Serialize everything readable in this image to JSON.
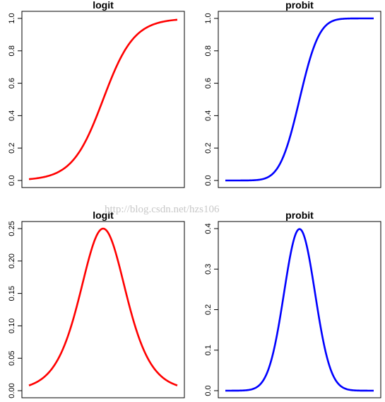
{
  "watermark": "http://blog.csdn.net/hzs106",
  "chart_data": [
    {
      "type": "line",
      "title": "logit",
      "function": "logistic cdf",
      "xlim": [
        -4.8,
        4.8
      ],
      "ylim": [
        0,
        1.0
      ],
      "yticks": [
        "0.0",
        "0.2",
        "0.4",
        "0.6",
        "0.8",
        "1.0"
      ],
      "color": "#ff0000",
      "series": [
        {
          "x": [
            -4.8,
            -4,
            -3,
            -2,
            -1.5,
            -1,
            -0.5,
            0,
            0.5,
            1,
            1.5,
            2,
            3,
            4,
            4.8
          ],
          "y": [
            0.008,
            0.018,
            0.047,
            0.119,
            0.182,
            0.269,
            0.378,
            0.5,
            0.622,
            0.731,
            0.818,
            0.881,
            0.953,
            0.982,
            0.992
          ]
        }
      ]
    },
    {
      "type": "line",
      "title": "probit",
      "function": "normal cdf",
      "xlim": [
        -4.8,
        4.8
      ],
      "ylim": [
        0,
        1.0
      ],
      "yticks": [
        "0.0",
        "0.2",
        "0.4",
        "0.6",
        "0.8",
        "1.0"
      ],
      "color": "#0000ff",
      "series": [
        {
          "x": [
            -4.8,
            -3,
            -2,
            -1.5,
            -1,
            -0.5,
            0,
            0.5,
            1,
            1.5,
            2,
            3,
            4.8
          ],
          "y": [
            0.0,
            0.001,
            0.023,
            0.067,
            0.159,
            0.309,
            0.5,
            0.691,
            0.841,
            0.933,
            0.977,
            0.999,
            1.0
          ]
        }
      ]
    },
    {
      "type": "line",
      "title": "logit",
      "function": "logistic pdf",
      "xlim": [
        -4.8,
        4.8
      ],
      "ylim": [
        0,
        0.25
      ],
      "yticks": [
        "0.00",
        "0.05",
        "0.10",
        "0.15",
        "0.20",
        "0.25"
      ],
      "color": "#ff0000",
      "series": [
        {
          "x": [
            -4.8,
            -4,
            -3,
            -2,
            -1.5,
            -1,
            -0.5,
            0,
            0.5,
            1,
            1.5,
            2,
            3,
            4,
            4.8
          ],
          "y": [
            0.008,
            0.018,
            0.045,
            0.105,
            0.149,
            0.197,
            0.235,
            0.25,
            0.235,
            0.197,
            0.149,
            0.105,
            0.045,
            0.018,
            0.008
          ]
        }
      ]
    },
    {
      "type": "line",
      "title": "probit",
      "function": "normal pdf",
      "xlim": [
        -4.8,
        4.8
      ],
      "ylim": [
        0,
        0.4
      ],
      "yticks": [
        "0.0",
        "0.1",
        "0.2",
        "0.3",
        "0.4"
      ],
      "color": "#0000ff",
      "series": [
        {
          "x": [
            -4.8,
            -3,
            -2,
            -1.5,
            -1,
            -0.5,
            0,
            0.5,
            1,
            1.5,
            2,
            3,
            4.8
          ],
          "y": [
            0.0,
            0.004,
            0.054,
            0.13,
            0.242,
            0.352,
            0.399,
            0.352,
            0.242,
            0.13,
            0.054,
            0.004,
            0.0
          ]
        }
      ]
    }
  ]
}
